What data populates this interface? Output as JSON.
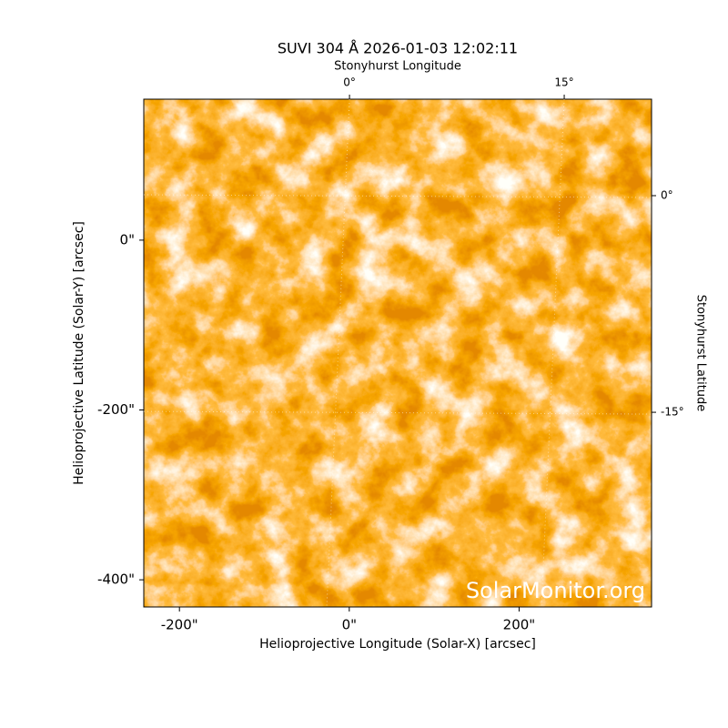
{
  "chart_data": {
    "type": "image",
    "title": "SUVI 304 Å 2026-01-03 12:02:11",
    "xlabel": "Helioprojective Longitude (Solar-X) [arcsec]",
    "ylabel": "Helioprojective Latitude (Solar-Y) [arcsec]",
    "x2label": "Stonyhurst Longitude",
    "y2label": "Stonyhurst Latitude",
    "watermark": "SolarMonitor.org",
    "xlim": [
      -242,
      356
    ],
    "ylim": [
      -432,
      166
    ],
    "xticks": [
      {
        "value": -200,
        "label": "-200\""
      },
      {
        "value": 0,
        "label": "0\""
      },
      {
        "value": 200,
        "label": "200\""
      }
    ],
    "yticks": [
      {
        "value": -400,
        "label": "-400\""
      },
      {
        "value": -200,
        "label": "-200\""
      },
      {
        "value": 0,
        "label": "0\""
      }
    ],
    "x2lim": [
      -14.37,
      21.1
    ],
    "x2ticks": [
      {
        "value": 0,
        "label": "0°"
      },
      {
        "value": 15,
        "label": "15°"
      }
    ],
    "y2lim": [
      -28.48,
      6.68
    ],
    "y2ticks": [
      {
        "value": -15,
        "label": "-15°"
      },
      {
        "value": 0,
        "label": "0°"
      }
    ],
    "grid": true
  }
}
